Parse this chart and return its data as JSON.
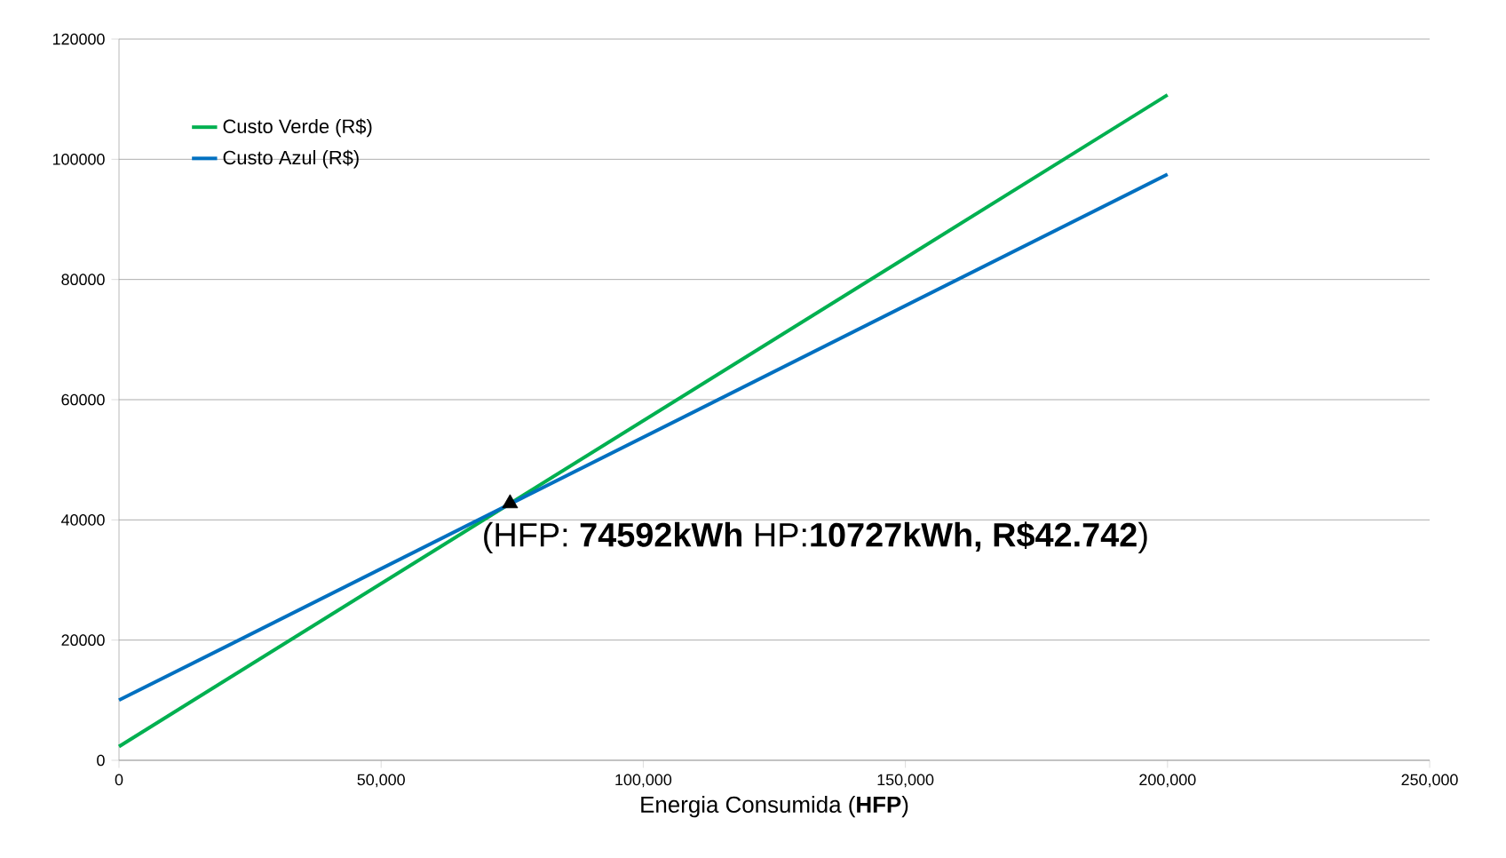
{
  "chart_data": {
    "type": "line",
    "xlabel": "Energia Consumida (**HFP**)",
    "x": [
      0,
      200000
    ],
    "series": [
      {
        "name": "Custo Verde (R$)",
        "color": "#00b050",
        "values": [
          2300,
          110700
        ]
      },
      {
        "name": "Custo Azul (R$)",
        "color": "#0070c0",
        "values": [
          10000,
          97500
        ]
      },
      {
        "type": "scatter",
        "marker": "triangle",
        "color": "#000000",
        "x": [
          74592
        ],
        "values": [
          42742
        ]
      }
    ],
    "annotations": [
      {
        "text": "(HFP: **74592kWh**  HP:**10727kWh, R$42.742**)",
        "x": 74592,
        "y": 42742
      }
    ],
    "xlim": [
      0,
      250000
    ],
    "ylim": [
      0,
      120000
    ],
    "xticks": [
      0,
      {
        "value": 50000,
        "label": "50,000"
      },
      {
        "value": 100000,
        "label": "100,000"
      },
      {
        "value": 150000,
        "label": "150,000"
      },
      {
        "value": 200000,
        "label": "200,000"
      },
      {
        "value": 250000,
        "label": "250,000"
      }
    ],
    "yticks": [
      0,
      20000,
      40000,
      60000,
      80000,
      100000,
      120000
    ],
    "grid": "y",
    "legend": "top left",
    "marker": "none",
    "line_style": "solid"
  }
}
